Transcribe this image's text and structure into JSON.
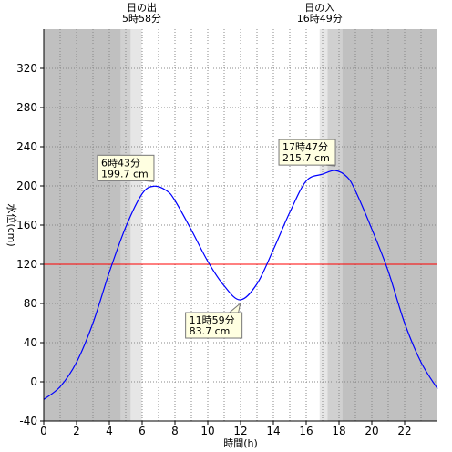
{
  "chart_data": {
    "type": "line",
    "xlabel": "時間(h)",
    "ylabel": "水位(cm)",
    "xlim": [
      0,
      24
    ],
    "ylim": [
      -40,
      360
    ],
    "x_ticks": [
      0,
      2,
      4,
      6,
      8,
      10,
      12,
      14,
      16,
      18,
      20,
      22
    ],
    "y_ticks": [
      -40,
      0,
      40,
      80,
      120,
      160,
      200,
      240,
      280,
      320
    ],
    "grid": true,
    "reference_line": {
      "value": 120,
      "color": "#ff0000"
    },
    "series": [
      {
        "color": "#0000ff",
        "x": [
          0,
          1,
          2,
          3,
          4,
          5,
          6,
          6.72,
          7.5,
          8,
          9,
          10,
          11,
          11.98,
          13,
          14,
          15,
          16,
          17,
          17.78,
          18.5,
          19,
          20,
          21,
          22,
          23,
          24
        ],
        "y": [
          -18,
          -5,
          20,
          60,
          112,
          158,
          192,
          199.7,
          195,
          185,
          155,
          123,
          98,
          83.7,
          100,
          135,
          173,
          205,
          212,
          215.7,
          209,
          195,
          156,
          113,
          60,
          20,
          -7
        ]
      }
    ],
    "annotations": [
      {
        "x": 6.72,
        "y": 199.7,
        "time": "6時43分",
        "value": "199.7 cm",
        "placement": "above-left"
      },
      {
        "x": 11.98,
        "y": 83.7,
        "time": "11時59分",
        "value": "83.7 cm",
        "placement": "below-left"
      },
      {
        "x": 17.78,
        "y": 215.7,
        "time": "17時47分",
        "value": "215.7 cm",
        "placement": "above-left"
      }
    ],
    "sunrise": {
      "label": "日の出",
      "time": "5時58分",
      "hour": 5.97
    },
    "sunset": {
      "label": "日の入",
      "time": "16時49分",
      "hour": 16.82
    },
    "twilight_bands": [
      {
        "from": 0,
        "to": 4.7,
        "shade": "#c0c0c0"
      },
      {
        "from": 4.7,
        "to": 5.3,
        "shade": "#d0d0d0"
      },
      {
        "from": 5.3,
        "to": 5.97,
        "shade": "#e6e6e6"
      },
      {
        "from": 16.82,
        "to": 17.3,
        "shade": "#e6e6e6"
      },
      {
        "from": 17.3,
        "to": 18.2,
        "shade": "#d0d0d0"
      },
      {
        "from": 18.2,
        "to": 24,
        "shade": "#c0c0c0"
      }
    ],
    "colors": {
      "day": "#ffffff",
      "line": "#0000ff",
      "reference": "#ff0000",
      "callout_bg": "#ffffe1"
    }
  }
}
